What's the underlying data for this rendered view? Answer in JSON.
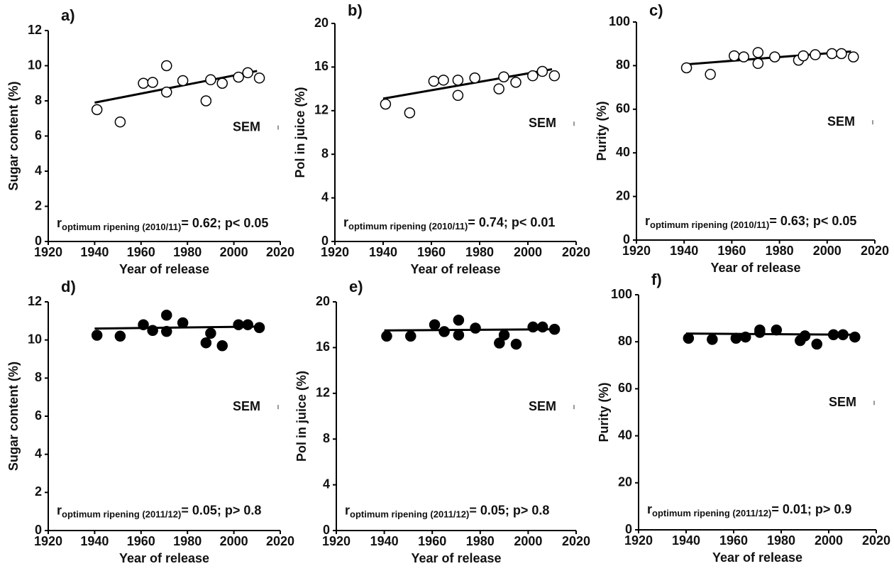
{
  "chart_data": [
    {
      "type": "scatter",
      "panel_label": "a)",
      "marker": "open",
      "color": "#000000",
      "x_label": "Year of release",
      "y_label": "Sugar content (%)",
      "x": [
        1941,
        1951,
        1961,
        1965,
        1971,
        1971,
        1978,
        1988,
        1990,
        1995,
        2002,
        2006,
        2011
      ],
      "values": [
        7.5,
        6.8,
        9.0,
        9.05,
        10.0,
        8.5,
        9.15,
        8.0,
        9.2,
        9.0,
        9.35,
        9.6,
        9.3
      ],
      "trend": {
        "x": [
          1940,
          2010
        ],
        "y": [
          7.9,
          9.7
        ]
      },
      "xlim": [
        1920,
        2020
      ],
      "xticks": [
        1920,
        1940,
        1960,
        1980,
        2000,
        2020
      ],
      "ylim": [
        0,
        12
      ],
      "yticks": [
        0,
        2,
        4,
        6,
        8,
        10,
        12
      ],
      "sem_label": "SEM",
      "annotation": {
        "symbol": "r",
        "subscript": "optimum ripening (2010/11)",
        "text": "= 0.62; p< 0.05"
      }
    },
    {
      "type": "scatter",
      "panel_label": "b)",
      "marker": "open",
      "color": "#000000",
      "x_label": "Year of release",
      "y_label": "Pol in juice (%)",
      "x": [
        1941,
        1951,
        1961,
        1965,
        1971,
        1971,
        1978,
        1988,
        1990,
        1995,
        2002,
        2006,
        2011
      ],
      "values": [
        12.6,
        11.8,
        14.7,
        14.8,
        14.8,
        13.4,
        15.0,
        14.0,
        15.1,
        14.6,
        15.2,
        15.6,
        15.2
      ],
      "trend": {
        "x": [
          1940,
          2010
        ],
        "y": [
          13.1,
          15.8
        ]
      },
      "xlim": [
        1920,
        2020
      ],
      "xticks": [
        1920,
        1940,
        1960,
        1980,
        2000,
        2020
      ],
      "ylim": [
        0,
        20
      ],
      "yticks": [
        0,
        4,
        8,
        12,
        16,
        20
      ],
      "sem_label": "SEM",
      "annotation": {
        "symbol": "r",
        "subscript": "optimum ripening (2010/11)",
        "text": "= 0.74; p< 0.01"
      }
    },
    {
      "type": "scatter",
      "panel_label": "c)",
      "marker": "open",
      "color": "#000000",
      "x_label": "Year of release",
      "y_label": "Purity (%)",
      "x": [
        1941,
        1951,
        1961,
        1965,
        1971,
        1971,
        1978,
        1988,
        1990,
        1995,
        2002,
        2006,
        2011
      ],
      "values": [
        79,
        76,
        84.5,
        84,
        86,
        81,
        84,
        82.5,
        84.5,
        85,
        85.5,
        85.5,
        84
      ],
      "trend": {
        "x": [
          1940,
          2010
        ],
        "y": [
          80.5,
          86.5
        ]
      },
      "xlim": [
        1920,
        2020
      ],
      "xticks": [
        1920,
        1940,
        1960,
        1980,
        2000,
        2020
      ],
      "ylim": [
        0,
        100
      ],
      "yticks": [
        0,
        20,
        40,
        60,
        80,
        100
      ],
      "sem_label": "SEM",
      "annotation": {
        "symbol": "r",
        "subscript": "optimum ripening (2010/11)",
        "text": "= 0.63; p< 0.05"
      }
    },
    {
      "type": "scatter",
      "panel_label": "d)",
      "marker": "filled",
      "color": "#000000",
      "x_label": "Year of release",
      "y_label": "Sugar content (%)",
      "x": [
        1941,
        1951,
        1961,
        1965,
        1971,
        1971,
        1978,
        1988,
        1990,
        1995,
        2002,
        2006,
        2011
      ],
      "values": [
        10.25,
        10.2,
        10.8,
        10.5,
        11.3,
        10.45,
        10.9,
        9.85,
        10.35,
        9.7,
        10.8,
        10.8,
        10.65
      ],
      "trend": {
        "x": [
          1940,
          2010
        ],
        "y": [
          10.6,
          10.7
        ]
      },
      "xlim": [
        1920,
        2020
      ],
      "xticks": [
        1920,
        1940,
        1960,
        1980,
        2000,
        2020
      ],
      "ylim": [
        0,
        12
      ],
      "yticks": [
        0,
        2,
        4,
        6,
        8,
        10,
        12
      ],
      "sem_label": "SEM",
      "annotation": {
        "symbol": "r",
        "subscript": "optimum ripening (2011/12)",
        "text": "= 0.05; p> 0.8"
      }
    },
    {
      "type": "scatter",
      "panel_label": "e)",
      "marker": "filled",
      "color": "#000000",
      "x_label": "Year of release",
      "y_label": "Pol in juice (%)",
      "x": [
        1941,
        1951,
        1961,
        1965,
        1971,
        1971,
        1978,
        1988,
        1990,
        1995,
        2002,
        2006,
        2011
      ],
      "values": [
        17.0,
        17.0,
        18.0,
        17.4,
        18.4,
        17.1,
        17.7,
        16.4,
        17.1,
        16.3,
        17.8,
        17.8,
        17.6
      ],
      "trend": {
        "x": [
          1940,
          2010
        ],
        "y": [
          17.5,
          17.6
        ]
      },
      "xlim": [
        1920,
        2020
      ],
      "xticks": [
        1920,
        1940,
        1960,
        1980,
        2000,
        2020
      ],
      "ylim": [
        0,
        20
      ],
      "yticks": [
        0,
        4,
        8,
        12,
        16,
        20
      ],
      "sem_label": "SEM",
      "annotation": {
        "symbol": "r",
        "subscript": "optimum ripening (2011/12)",
        "text": "= 0.05; p> 0.8"
      }
    },
    {
      "type": "scatter",
      "panel_label": "f)",
      "marker": "filled",
      "color": "#000000",
      "x_label": "Year of release",
      "y_label": "Purity (%)",
      "x": [
        1941,
        1951,
        1961,
        1965,
        1971,
        1971,
        1978,
        1988,
        1990,
        1995,
        2002,
        2006,
        2011
      ],
      "values": [
        81.5,
        81,
        81.5,
        82,
        85,
        84,
        85,
        80.5,
        82.5,
        79,
        83,
        83,
        82
      ],
      "trend": {
        "x": [
          1940,
          2010
        ],
        "y": [
          83.5,
          83
        ]
      },
      "xlim": [
        1920,
        2020
      ],
      "xticks": [
        1920,
        1940,
        1960,
        1980,
        2000,
        2020
      ],
      "ylim": [
        0,
        100
      ],
      "yticks": [
        0,
        20,
        40,
        60,
        80,
        100
      ],
      "sem_label": "SEM",
      "annotation": {
        "symbol": "r",
        "subscript": "optimum ripening (2011/12)",
        "text": "= 0.01; p> 0.9"
      }
    }
  ]
}
